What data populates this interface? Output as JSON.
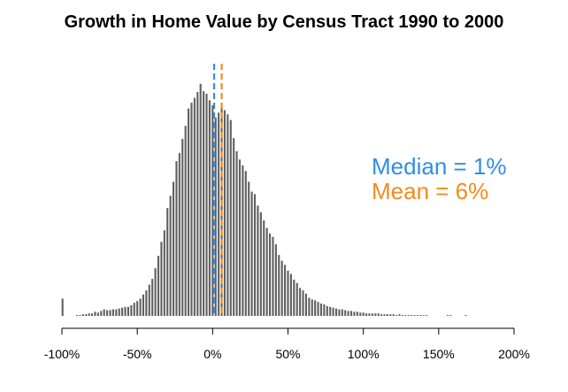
{
  "chart_data": {
    "type": "bar",
    "title": "Growth in Home Value by Census Tract 1990 to 2000",
    "xlabel": "",
    "ylabel": "",
    "xlim": [
      -100,
      200
    ],
    "x_ticks": [
      -100,
      -50,
      0,
      50,
      100,
      150,
      200
    ],
    "x_tick_labels": [
      "-100%",
      "-50%",
      "0%",
      "50%",
      "100%",
      "150%",
      "200%"
    ],
    "bin_width": 2,
    "y_axis_shown": false,
    "grid": false,
    "bar_color": "#606060",
    "bins": [
      {
        "x": -100,
        "count": 21
      },
      {
        "x": -98,
        "count": 0
      },
      {
        "x": -96,
        "count": 0
      },
      {
        "x": -94,
        "count": 0
      },
      {
        "x": -92,
        "count": 0
      },
      {
        "x": -90,
        "count": 1
      },
      {
        "x": -88,
        "count": 1
      },
      {
        "x": -86,
        "count": 2
      },
      {
        "x": -84,
        "count": 2
      },
      {
        "x": -82,
        "count": 3
      },
      {
        "x": -80,
        "count": 3
      },
      {
        "x": -78,
        "count": 5
      },
      {
        "x": -76,
        "count": 4
      },
      {
        "x": -74,
        "count": 6
      },
      {
        "x": -72,
        "count": 8
      },
      {
        "x": -70,
        "count": 7
      },
      {
        "x": -68,
        "count": 7
      },
      {
        "x": -66,
        "count": 8
      },
      {
        "x": -64,
        "count": 8
      },
      {
        "x": -62,
        "count": 9
      },
      {
        "x": -60,
        "count": 10
      },
      {
        "x": -58,
        "count": 11
      },
      {
        "x": -56,
        "count": 11
      },
      {
        "x": -54,
        "count": 13
      },
      {
        "x": -52,
        "count": 16
      },
      {
        "x": -50,
        "count": 18
      },
      {
        "x": -48,
        "count": 21
      },
      {
        "x": -46,
        "count": 26
      },
      {
        "x": -44,
        "count": 31
      },
      {
        "x": -42,
        "count": 38
      },
      {
        "x": -40,
        "count": 45
      },
      {
        "x": -38,
        "count": 58
      },
      {
        "x": -36,
        "count": 73
      },
      {
        "x": -34,
        "count": 90
      },
      {
        "x": -32,
        "count": 104
      },
      {
        "x": -30,
        "count": 131
      },
      {
        "x": -28,
        "count": 146
      },
      {
        "x": -26,
        "count": 163
      },
      {
        "x": -24,
        "count": 188
      },
      {
        "x": -22,
        "count": 198
      },
      {
        "x": -20,
        "count": 215
      },
      {
        "x": -18,
        "count": 231
      },
      {
        "x": -16,
        "count": 252
      },
      {
        "x": -14,
        "count": 259
      },
      {
        "x": -12,
        "count": 265
      },
      {
        "x": -10,
        "count": 272
      },
      {
        "x": -8,
        "count": 282
      },
      {
        "x": -6,
        "count": 273
      },
      {
        "x": -4,
        "count": 270
      },
      {
        "x": -2,
        "count": 262
      },
      {
        "x": 0,
        "count": 256
      },
      {
        "x": 2,
        "count": 241
      },
      {
        "x": 4,
        "count": 247
      },
      {
        "x": 6,
        "count": 254
      },
      {
        "x": 8,
        "count": 250
      },
      {
        "x": 10,
        "count": 245
      },
      {
        "x": 12,
        "count": 238
      },
      {
        "x": 14,
        "count": 216
      },
      {
        "x": 16,
        "count": 200
      },
      {
        "x": 18,
        "count": 190
      },
      {
        "x": 20,
        "count": 183
      },
      {
        "x": 22,
        "count": 176
      },
      {
        "x": 24,
        "count": 163
      },
      {
        "x": 26,
        "count": 151
      },
      {
        "x": 28,
        "count": 148
      },
      {
        "x": 30,
        "count": 134
      },
      {
        "x": 32,
        "count": 126
      },
      {
        "x": 34,
        "count": 116
      },
      {
        "x": 36,
        "count": 107
      },
      {
        "x": 38,
        "count": 100
      },
      {
        "x": 40,
        "count": 96
      },
      {
        "x": 42,
        "count": 87
      },
      {
        "x": 44,
        "count": 74
      },
      {
        "x": 46,
        "count": 67
      },
      {
        "x": 48,
        "count": 62
      },
      {
        "x": 50,
        "count": 55
      },
      {
        "x": 52,
        "count": 51
      },
      {
        "x": 54,
        "count": 44
      },
      {
        "x": 56,
        "count": 40
      },
      {
        "x": 58,
        "count": 34
      },
      {
        "x": 60,
        "count": 31
      },
      {
        "x": 62,
        "count": 27
      },
      {
        "x": 64,
        "count": 22
      },
      {
        "x": 66,
        "count": 20
      },
      {
        "x": 68,
        "count": 19
      },
      {
        "x": 70,
        "count": 17
      },
      {
        "x": 72,
        "count": 15
      },
      {
        "x": 74,
        "count": 14
      },
      {
        "x": 76,
        "count": 12
      },
      {
        "x": 78,
        "count": 11
      },
      {
        "x": 80,
        "count": 10
      },
      {
        "x": 82,
        "count": 9
      },
      {
        "x": 84,
        "count": 8
      },
      {
        "x": 86,
        "count": 8
      },
      {
        "x": 88,
        "count": 7
      },
      {
        "x": 90,
        "count": 6
      },
      {
        "x": 92,
        "count": 6
      },
      {
        "x": 94,
        "count": 5
      },
      {
        "x": 96,
        "count": 5
      },
      {
        "x": 98,
        "count": 4
      },
      {
        "x": 100,
        "count": 4
      },
      {
        "x": 102,
        "count": 3
      },
      {
        "x": 104,
        "count": 3
      },
      {
        "x": 106,
        "count": 3
      },
      {
        "x": 108,
        "count": 3
      },
      {
        "x": 110,
        "count": 3
      },
      {
        "x": 112,
        "count": 2
      },
      {
        "x": 114,
        "count": 2
      },
      {
        "x": 116,
        "count": 2
      },
      {
        "x": 118,
        "count": 2
      },
      {
        "x": 120,
        "count": 2
      },
      {
        "x": 122,
        "count": 1
      },
      {
        "x": 124,
        "count": 2
      },
      {
        "x": 126,
        "count": 1
      },
      {
        "x": 128,
        "count": 1
      },
      {
        "x": 130,
        "count": 1
      },
      {
        "x": 132,
        "count": 1
      },
      {
        "x": 134,
        "count": 1
      },
      {
        "x": 136,
        "count": 1
      },
      {
        "x": 138,
        "count": 1
      },
      {
        "x": 140,
        "count": 1
      },
      {
        "x": 142,
        "count": 1
      },
      {
        "x": 144,
        "count": 0
      },
      {
        "x": 146,
        "count": 0
      },
      {
        "x": 148,
        "count": 0
      },
      {
        "x": 150,
        "count": 0
      },
      {
        "x": 152,
        "count": 0
      },
      {
        "x": 154,
        "count": 0
      },
      {
        "x": 156,
        "count": 1
      },
      {
        "x": 158,
        "count": 1
      },
      {
        "x": 160,
        "count": 0
      },
      {
        "x": 162,
        "count": 0
      },
      {
        "x": 164,
        "count": 0
      },
      {
        "x": 166,
        "count": 0
      },
      {
        "x": 168,
        "count": 1
      }
    ],
    "reference_lines": [
      {
        "label": "Median = 1%",
        "x": 1,
        "color": "#2f8fe6",
        "style": "dashed"
      },
      {
        "label": "Mean = 6%",
        "x": 6,
        "color": "#f28c1c",
        "style": "dashed"
      }
    ]
  }
}
